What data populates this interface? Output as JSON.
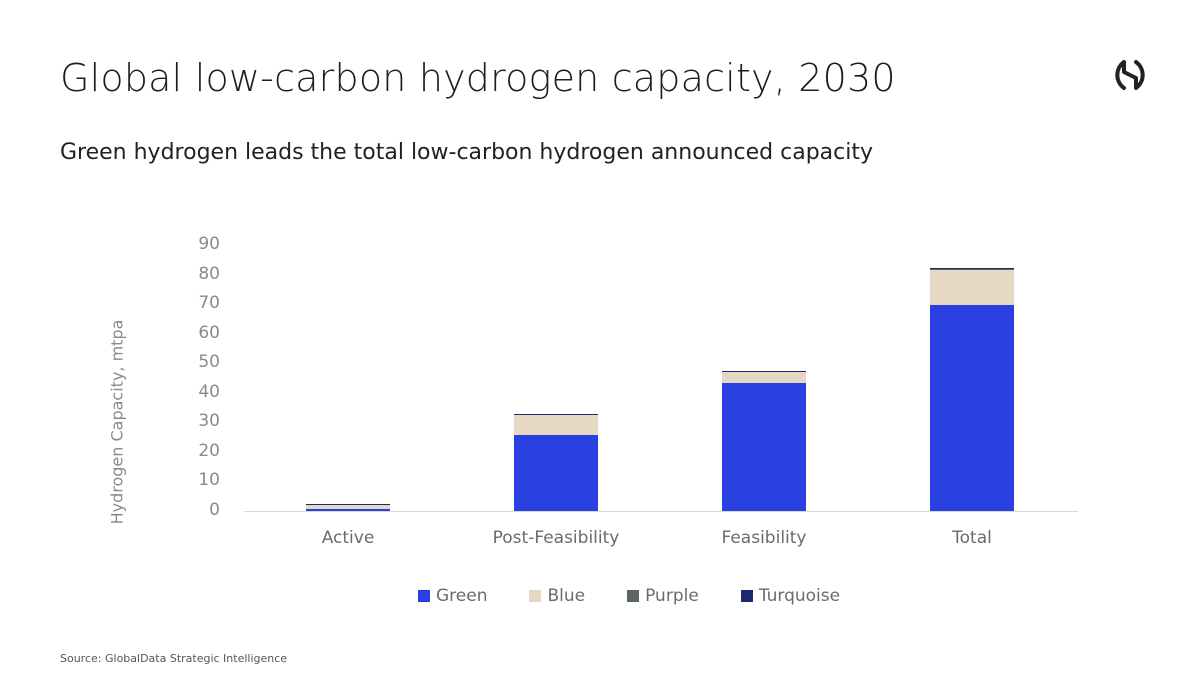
{
  "header": {
    "title": "Global low-carbon hydrogen capacity, 2030",
    "subtitle": "Green hydrogen leads the total low-carbon hydrogen announced capacity",
    "logo_icon": "globaldata-logo-icon"
  },
  "footer": {
    "source": "Source: GlobalData Strategic Intelligence"
  },
  "colors": {
    "Green": "#2a3fe0",
    "Blue": "#e6d8c3",
    "Purple": "#5e6460",
    "Turquoise": "#1a2a6c"
  },
  "yticks": [
    "0",
    "10",
    "20",
    "30",
    "40",
    "50",
    "60",
    "70",
    "80",
    "90"
  ],
  "chart_data": {
    "type": "bar",
    "stacked": true,
    "title": "Global low-carbon hydrogen capacity, 2030",
    "subtitle": "Green hydrogen leads the total low-carbon hydrogen announced capacity",
    "xlabel": "",
    "ylabel": "Hydrogen Capacity, mtpa",
    "ylim": [
      0,
      90
    ],
    "yticks": [
      0,
      10,
      20,
      30,
      40,
      50,
      60,
      70,
      80,
      90
    ],
    "grid": false,
    "legend_position": "bottom",
    "categories": [
      "Active",
      "Post-Feasibility",
      "Feasibility",
      "Total"
    ],
    "series": [
      {
        "name": "Green",
        "color": "#2a3fe0",
        "values": [
          0.6,
          25.7,
          43.3,
          69.7
        ]
      },
      {
        "name": "Blue",
        "color": "#e6d8c3",
        "values": [
          1.5,
          6.8,
          3.7,
          12.0
        ]
      },
      {
        "name": "Purple",
        "color": "#5e6460",
        "values": [
          0.1,
          0.1,
          0.1,
          0.1
        ]
      },
      {
        "name": "Turquoise",
        "color": "#1a2a6c",
        "values": [
          0.3,
          0.3,
          0.3,
          0.5
        ]
      }
    ]
  }
}
